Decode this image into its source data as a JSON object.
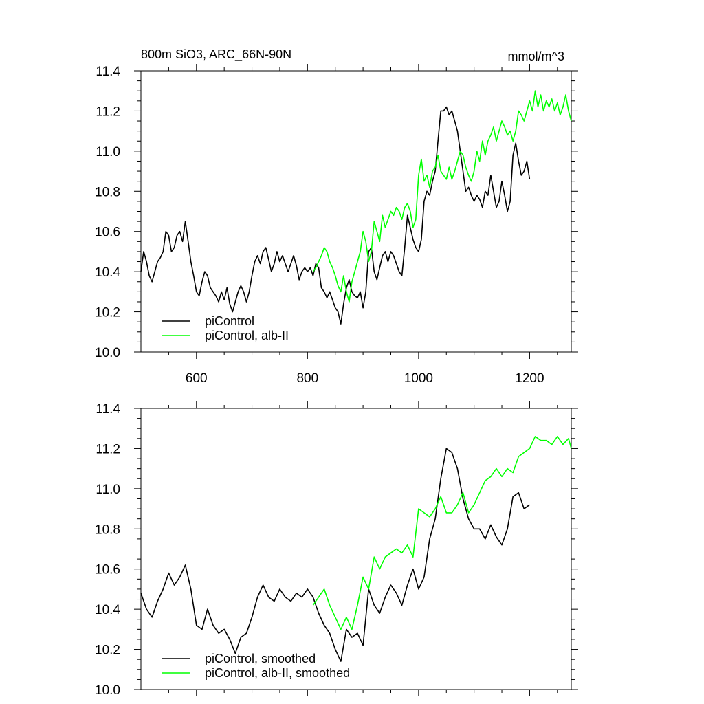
{
  "chart_data": [
    {
      "type": "line",
      "title": "800m SiO3, ARC_66N-90N",
      "units": "mmol/m^3",
      "xlim": [
        500,
        1275
      ],
      "ylim": [
        10.0,
        11.4
      ],
      "x_tick_labels": [
        "600",
        "800",
        "1000",
        "1200"
      ],
      "x_ticks": [
        600,
        800,
        1000,
        1200
      ],
      "y_tick_labels": [
        "10.0",
        "10.2",
        "10.4",
        "10.6",
        "10.8",
        "11.0",
        "11.2",
        "11.4"
      ],
      "y_ticks": [
        10.0,
        10.2,
        10.4,
        10.6,
        10.8,
        11.0,
        11.2,
        11.4
      ],
      "grid": false,
      "legend_position": "bottom-left",
      "series": [
        {
          "name": "piControl",
          "color": "#000000",
          "x": [
            500,
            505,
            510,
            515,
            520,
            525,
            530,
            535,
            540,
            545,
            550,
            555,
            560,
            565,
            570,
            575,
            580,
            585,
            590,
            595,
            600,
            605,
            610,
            615,
            620,
            625,
            630,
            635,
            640,
            645,
            650,
            655,
            660,
            665,
            670,
            675,
            680,
            685,
            690,
            695,
            700,
            705,
            710,
            715,
            720,
            725,
            730,
            735,
            740,
            745,
            750,
            755,
            760,
            765,
            770,
            775,
            780,
            785,
            790,
            795,
            800,
            805,
            810,
            815,
            820,
            825,
            830,
            835,
            840,
            845,
            850,
            855,
            860,
            865,
            870,
            875,
            880,
            885,
            890,
            895,
            900,
            905,
            910,
            915,
            920,
            925,
            930,
            935,
            940,
            945,
            950,
            955,
            960,
            965,
            970,
            975,
            980,
            985,
            990,
            995,
            1000,
            1005,
            1010,
            1015,
            1020,
            1025,
            1030,
            1035,
            1040,
            1045,
            1050,
            1055,
            1060,
            1065,
            1070,
            1075,
            1080,
            1085,
            1090,
            1095,
            1100,
            1105,
            1110,
            1115,
            1120,
            1125,
            1130,
            1135,
            1140,
            1145,
            1150,
            1155,
            1160,
            1165,
            1170,
            1175,
            1180,
            1185,
            1190,
            1195,
            1200
          ],
          "values": [
            10.4,
            10.5,
            10.45,
            10.38,
            10.35,
            10.4,
            10.45,
            10.47,
            10.5,
            10.6,
            10.58,
            10.5,
            10.52,
            10.58,
            10.6,
            10.55,
            10.65,
            10.55,
            10.45,
            10.38,
            10.3,
            10.28,
            10.35,
            10.4,
            10.38,
            10.32,
            10.3,
            10.28,
            10.25,
            10.3,
            10.26,
            10.32,
            10.24,
            10.2,
            10.25,
            10.3,
            10.33,
            10.3,
            10.25,
            10.3,
            10.38,
            10.45,
            10.48,
            10.44,
            10.5,
            10.52,
            10.46,
            10.4,
            10.44,
            10.5,
            10.45,
            10.48,
            10.44,
            10.4,
            10.44,
            10.48,
            10.43,
            10.36,
            10.4,
            10.42,
            10.4,
            10.42,
            10.38,
            10.44,
            10.42,
            10.32,
            10.3,
            10.27,
            10.3,
            10.26,
            10.22,
            10.2,
            10.14,
            10.24,
            10.32,
            10.36,
            10.3,
            10.28,
            10.27,
            10.3,
            10.22,
            10.3,
            10.5,
            10.52,
            10.4,
            10.36,
            10.42,
            10.48,
            10.5,
            10.45,
            10.5,
            10.48,
            10.44,
            10.4,
            10.38,
            10.52,
            10.68,
            10.62,
            10.56,
            10.52,
            10.5,
            10.56,
            10.75,
            10.8,
            10.78,
            10.85,
            10.9,
            11.05,
            11.2,
            11.2,
            11.22,
            11.18,
            11.2,
            11.15,
            11.1,
            11.0,
            10.9,
            10.8,
            10.82,
            10.78,
            10.75,
            10.78,
            10.76,
            10.72,
            10.8,
            10.78,
            10.88,
            10.8,
            10.72,
            10.75,
            10.85,
            10.78,
            10.7,
            10.75,
            10.98,
            11.04,
            10.95,
            10.88,
            10.9,
            10.95,
            10.86
          ]
        },
        {
          "name": "piControl, alb-II",
          "color": "#00ff00",
          "x": [
            810,
            815,
            820,
            825,
            830,
            835,
            840,
            845,
            850,
            855,
            860,
            865,
            870,
            875,
            880,
            885,
            890,
            895,
            900,
            905,
            910,
            915,
            920,
            925,
            930,
            935,
            940,
            945,
            950,
            955,
            960,
            965,
            970,
            975,
            980,
            985,
            990,
            995,
            1000,
            1005,
            1010,
            1015,
            1020,
            1025,
            1030,
            1035,
            1040,
            1045,
            1050,
            1055,
            1060,
            1065,
            1070,
            1075,
            1080,
            1085,
            1090,
            1095,
            1100,
            1105,
            1110,
            1115,
            1120,
            1125,
            1130,
            1135,
            1140,
            1145,
            1150,
            1155,
            1160,
            1165,
            1170,
            1175,
            1180,
            1185,
            1190,
            1195,
            1200,
            1205,
            1210,
            1215,
            1220,
            1225,
            1230,
            1235,
            1240,
            1245,
            1250,
            1255,
            1260,
            1265,
            1270,
            1275
          ],
          "values": [
            10.4,
            10.42,
            10.45,
            10.48,
            10.52,
            10.5,
            10.45,
            10.42,
            10.38,
            10.33,
            10.3,
            10.38,
            10.3,
            10.25,
            10.35,
            10.4,
            10.45,
            10.5,
            10.6,
            10.55,
            10.45,
            10.5,
            10.65,
            10.6,
            10.55,
            10.68,
            10.62,
            10.66,
            10.7,
            10.68,
            10.72,
            10.7,
            10.66,
            10.72,
            10.74,
            10.7,
            10.62,
            10.66,
            10.88,
            10.96,
            10.85,
            10.88,
            10.82,
            10.9,
            10.92,
            10.98,
            10.9,
            10.88,
            10.86,
            10.92,
            10.86,
            10.9,
            10.95,
            11.0,
            10.98,
            10.92,
            10.88,
            10.85,
            10.9,
            11.0,
            10.95,
            11.05,
            10.98,
            11.05,
            11.08,
            11.12,
            11.05,
            11.1,
            11.15,
            11.12,
            11.08,
            11.1,
            11.05,
            11.1,
            11.2,
            11.18,
            11.15,
            11.2,
            11.25,
            11.2,
            11.3,
            11.22,
            11.28,
            11.2,
            11.25,
            11.22,
            11.26,
            11.2,
            11.24,
            11.18,
            11.22,
            11.28,
            11.2,
            11.15
          ]
        }
      ]
    },
    {
      "type": "line",
      "xlim": [
        500,
        1275
      ],
      "ylim": [
        10.0,
        11.4
      ],
      "x_ticks": [
        600,
        800,
        1000,
        1200
      ],
      "y_tick_labels": [
        "10.0",
        "10.2",
        "10.4",
        "10.6",
        "10.8",
        "11.0",
        "11.2",
        "11.4"
      ],
      "y_ticks": [
        10.0,
        10.2,
        10.4,
        10.6,
        10.8,
        11.0,
        11.2,
        11.4
      ],
      "grid": false,
      "legend_position": "bottom-left",
      "series": [
        {
          "name": "piControl, smoothed",
          "color": "#000000",
          "x": [
            500,
            510,
            520,
            530,
            540,
            550,
            560,
            570,
            580,
            590,
            600,
            610,
            620,
            630,
            640,
            650,
            660,
            670,
            680,
            690,
            700,
            710,
            720,
            730,
            740,
            750,
            760,
            770,
            780,
            790,
            800,
            810,
            820,
            830,
            840,
            850,
            860,
            870,
            880,
            890,
            900,
            910,
            920,
            930,
            940,
            950,
            960,
            970,
            980,
            990,
            1000,
            1010,
            1020,
            1030,
            1040,
            1050,
            1060,
            1070,
            1080,
            1090,
            1100,
            1110,
            1120,
            1130,
            1140,
            1150,
            1160,
            1170,
            1180,
            1190,
            1200
          ],
          "values": [
            10.48,
            10.4,
            10.36,
            10.44,
            10.5,
            10.58,
            10.52,
            10.56,
            10.62,
            10.5,
            10.32,
            10.3,
            10.4,
            10.32,
            10.28,
            10.3,
            10.25,
            10.18,
            10.26,
            10.28,
            10.36,
            10.46,
            10.52,
            10.46,
            10.44,
            10.5,
            10.46,
            10.44,
            10.48,
            10.46,
            10.5,
            10.46,
            10.38,
            10.32,
            10.28,
            10.2,
            10.14,
            10.3,
            10.26,
            10.28,
            10.22,
            10.5,
            10.42,
            10.38,
            10.46,
            10.52,
            10.48,
            10.42,
            10.52,
            10.6,
            10.5,
            10.56,
            10.75,
            10.85,
            11.05,
            11.2,
            11.18,
            11.1,
            10.95,
            10.85,
            10.8,
            10.8,
            10.75,
            10.82,
            10.76,
            10.72,
            10.8,
            10.96,
            10.98,
            10.9,
            10.92
          ]
        },
        {
          "name": "piControl, alb-II, smoothed",
          "color": "#00ff00",
          "x": [
            810,
            820,
            830,
            840,
            850,
            860,
            870,
            880,
            890,
            900,
            910,
            920,
            930,
            940,
            950,
            960,
            970,
            980,
            990,
            1000,
            1010,
            1020,
            1030,
            1040,
            1050,
            1060,
            1070,
            1080,
            1090,
            1100,
            1110,
            1120,
            1130,
            1140,
            1150,
            1160,
            1170,
            1180,
            1190,
            1200,
            1210,
            1220,
            1230,
            1240,
            1250,
            1260,
            1270,
            1275
          ],
          "values": [
            10.42,
            10.46,
            10.5,
            10.42,
            10.36,
            10.3,
            10.36,
            10.3,
            10.42,
            10.56,
            10.5,
            10.66,
            10.6,
            10.66,
            10.68,
            10.7,
            10.68,
            10.72,
            10.66,
            10.9,
            10.88,
            10.86,
            10.9,
            10.96,
            10.88,
            10.88,
            10.92,
            10.98,
            10.88,
            10.92,
            10.98,
            11.04,
            11.06,
            11.1,
            11.06,
            11.1,
            11.08,
            11.16,
            11.18,
            11.2,
            11.26,
            11.24,
            11.24,
            11.22,
            11.26,
            11.22,
            11.25,
            11.2
          ]
        }
      ]
    }
  ]
}
